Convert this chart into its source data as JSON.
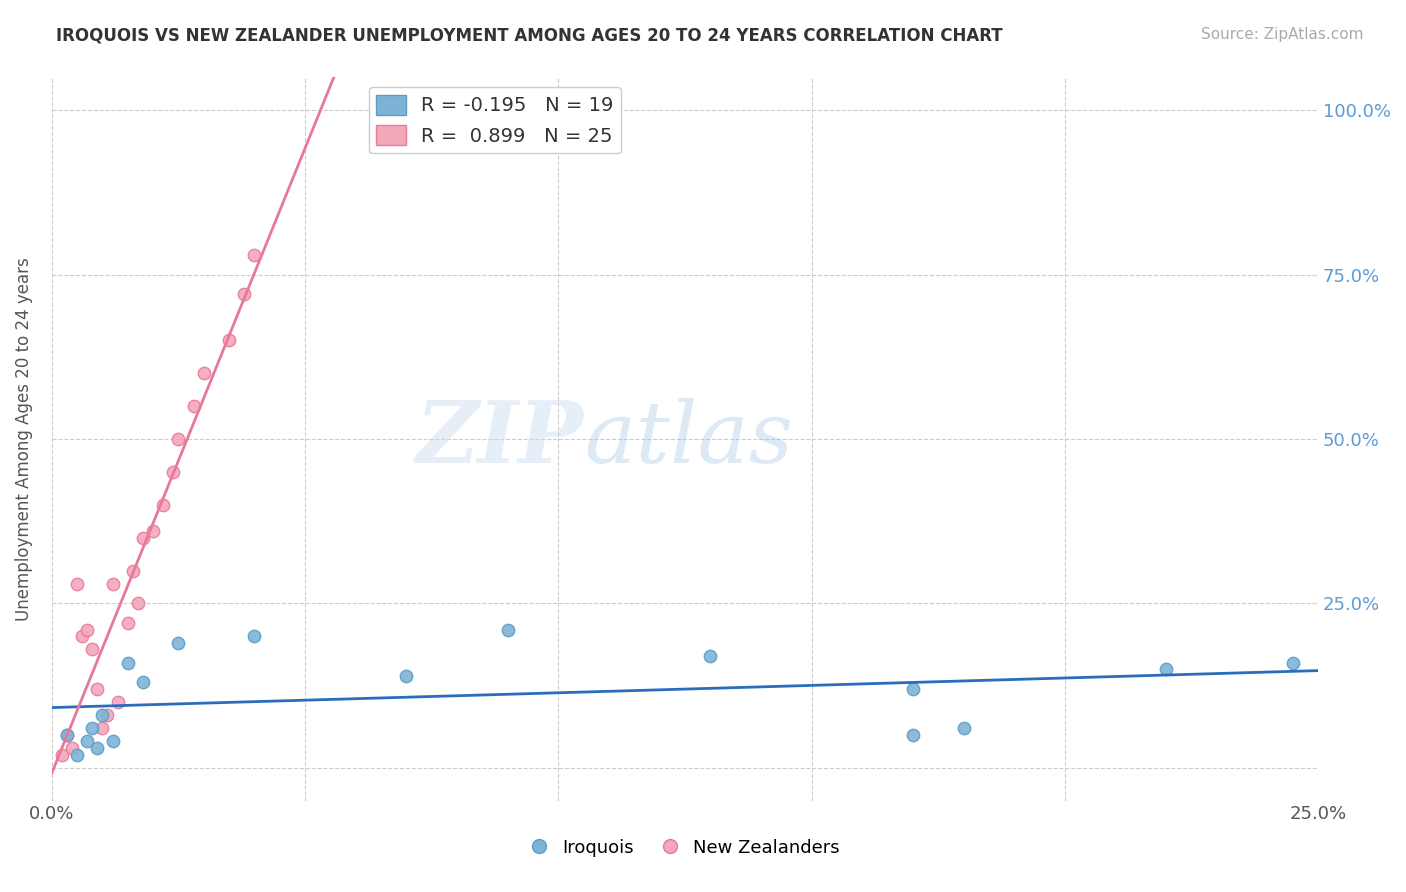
{
  "title": "IROQUOIS VS NEW ZEALANDER UNEMPLOYMENT AMONG AGES 20 TO 24 YEARS CORRELATION CHART",
  "source": "Source: ZipAtlas.com",
  "ylabel": "Unemployment Among Ages 20 to 24 years",
  "xlim": [
    0.0,
    0.25
  ],
  "ylim": [
    -0.05,
    1.05
  ],
  "yticks": [
    0.0,
    0.25,
    0.5,
    0.75,
    1.0
  ],
  "ytick_labels": [
    "",
    "25.0%",
    "50.0%",
    "75.0%",
    "100.0%"
  ],
  "xtick_labels": [
    "0.0%",
    "25.0%"
  ],
  "background_color": "#ffffff",
  "grid_color": "#cccccc",
  "iroquois_color": "#7eb3d8",
  "iroquois_edge": "#5a9ec8",
  "nz_color": "#f4a7b9",
  "nz_edge": "#e87a9a",
  "iroquois_line_color": "#2a6ebb",
  "nz_line_color": "#e8789a",
  "legend_R_iroquois": "R = -0.195",
  "legend_N_iroquois": "N = 19",
  "legend_R_nz": "R = 0.899",
  "legend_N_nz": "N = 25",
  "iroquois_x": [
    0.003,
    0.005,
    0.007,
    0.008,
    0.009,
    0.01,
    0.012,
    0.015,
    0.018,
    0.025,
    0.04,
    0.07,
    0.09,
    0.13,
    0.17,
    0.17,
    0.18,
    0.22,
    0.245
  ],
  "iroquois_y": [
    0.05,
    0.02,
    0.04,
    0.06,
    0.03,
    0.08,
    0.04,
    0.16,
    0.13,
    0.19,
    0.2,
    0.14,
    0.21,
    0.17,
    0.05,
    0.12,
    0.06,
    0.15,
    0.16
  ],
  "nz_x": [
    0.002,
    0.003,
    0.004,
    0.005,
    0.006,
    0.007,
    0.008,
    0.009,
    0.01,
    0.011,
    0.012,
    0.013,
    0.015,
    0.016,
    0.017,
    0.018,
    0.02,
    0.022,
    0.024,
    0.025,
    0.028,
    0.03,
    0.035,
    0.038,
    0.04
  ],
  "nz_y": [
    0.02,
    0.05,
    0.03,
    0.28,
    0.2,
    0.21,
    0.18,
    0.12,
    0.06,
    0.08,
    0.28,
    0.1,
    0.22,
    0.3,
    0.25,
    0.35,
    0.36,
    0.4,
    0.45,
    0.5,
    0.55,
    0.6,
    0.65,
    0.72,
    0.78
  ]
}
